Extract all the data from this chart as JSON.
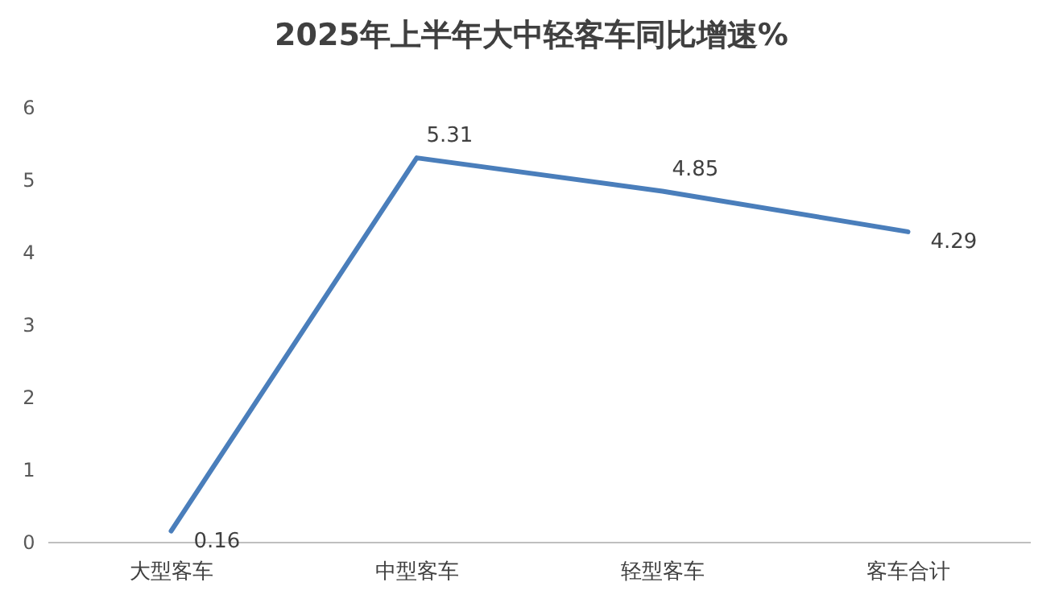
{
  "chart_data": {
    "type": "line",
    "title": "2025年上半年大中轻客车同比增速%",
    "categories": [
      "大型客车",
      "中型客车",
      "轻型客车",
      "客车合计"
    ],
    "series": [
      {
        "color": "#4a7ebb",
        "values": [
          0.16,
          5.31,
          4.85,
          4.29
        ]
      }
    ],
    "ylim": [
      0,
      6
    ],
    "yticks": [
      0,
      1,
      2,
      3,
      4,
      5,
      6
    ],
    "grid": false,
    "marker": "none",
    "line_style": "solid",
    "data_labels": true
  }
}
